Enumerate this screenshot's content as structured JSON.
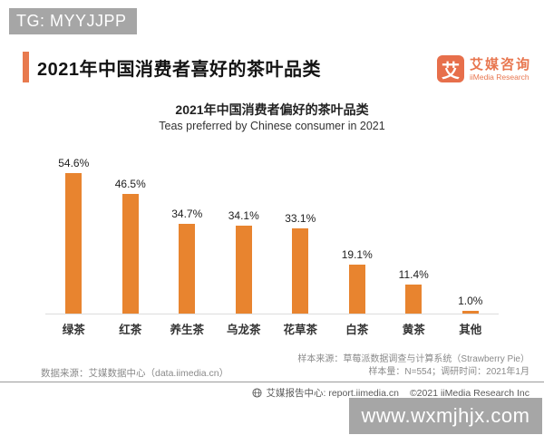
{
  "watermarks": {
    "top": "TG: MYYJJPP",
    "bottom": "www.wxmjhjx.com"
  },
  "header": {
    "title": "2021年中国消费者喜好的茶叶品类",
    "logo": {
      "icon_char": "艾",
      "name_cn": "艾媒咨询",
      "name_en": "iiMedia Research"
    }
  },
  "chart_data": {
    "type": "bar",
    "title": "2021年中国消费者偏好的茶叶品类",
    "subtitle": "Teas preferred by Chinese consumer in 2021",
    "categories": [
      "绿茶",
      "红茶",
      "养生茶",
      "乌龙茶",
      "花草茶",
      "白茶",
      "黄茶",
      "其他"
    ],
    "values": [
      54.6,
      46.5,
      34.7,
      34.1,
      33.1,
      19.1,
      11.4,
      1.0
    ],
    "value_labels": [
      "54.6%",
      "46.5%",
      "34.7%",
      "34.1%",
      "33.1%",
      "19.1%",
      "11.4%",
      "1.0%"
    ],
    "bar_color": "#E8842F",
    "ylim": [
      0,
      60
    ],
    "grid": false,
    "legend": "none"
  },
  "footnotes": {
    "data_source": "数据来源：艾媒数据中心（data.iimedia.cn）",
    "sample_source": "样本来源：草莓派数据调查与计算系统（Strawberry Pie）",
    "sample_size": "样本量：N=554；调研时间：2021年1月"
  },
  "footer": {
    "report_center": "艾媒报告中心: report.iimedia.cn",
    "copyright": "©2021 iiMedia Research Inc"
  },
  "colors": {
    "accent_orange": "#E87A4E",
    "bar_orange": "#E8842F",
    "logo_orange": "#E76F4B",
    "watermark_gray": "#A6A6A6"
  }
}
